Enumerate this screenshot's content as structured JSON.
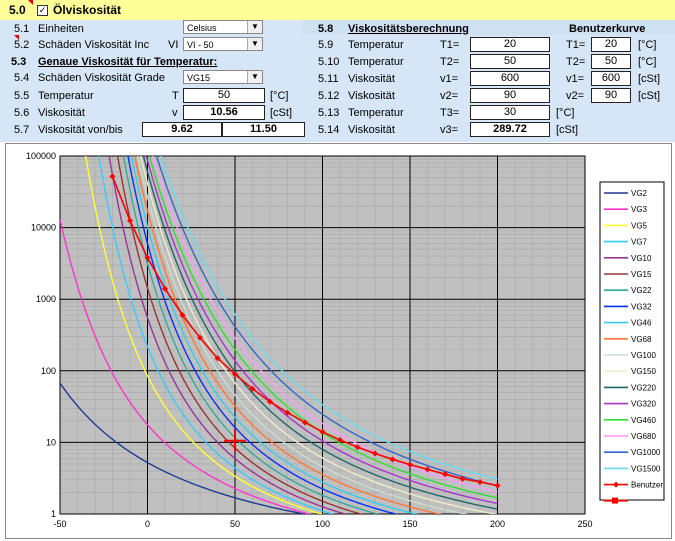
{
  "header": {
    "section": "5.0",
    "title": "Ölviskosität",
    "checked": true
  },
  "form_left": {
    "r51": {
      "num": "5.1",
      "label": "Einheiten",
      "select": "Celsius"
    },
    "r52": {
      "num": "5.2",
      "label": "Schäden Viskosität Inc",
      "sym": "VI",
      "select": "VI - 50"
    },
    "r53": {
      "num": "5.3",
      "label": "Genaue Viskosität für Temperatur:"
    },
    "r54": {
      "num": "5.4",
      "label": "Schäden Viskosität Grade",
      "select": "VG15"
    },
    "r55": {
      "num": "5.5",
      "label": "Temperatur",
      "sym": "T",
      "value": "50",
      "unit": "[°C]"
    },
    "r56": {
      "num": "5.6",
      "label": "Viskosität",
      "sym": "v",
      "value": "10.56",
      "unit": "[cSt]"
    },
    "r57": {
      "num": "5.7",
      "label": "Viskosität von/bis",
      "v1": "9.62",
      "v2": "11.50"
    }
  },
  "form_right": {
    "r58": {
      "num": "5.8",
      "label": "Viskositätsberechnung",
      "user": "Benutzerkurve"
    },
    "rows": [
      {
        "num": "5.9",
        "label": "Temperatur",
        "sym": "T1=",
        "value": "20",
        "sym2": "T1=",
        "value2": "20",
        "unit": "[°C]"
      },
      {
        "num": "5.10",
        "label": "Temperatur",
        "sym": "T2=",
        "value": "50",
        "sym2": "T2=",
        "value2": "50",
        "unit": "[°C]"
      },
      {
        "num": "5.11",
        "label": "Viskosität",
        "sym": "v1=",
        "value": "600",
        "sym2": "v1=",
        "value2": "600",
        "unit": "[cSt]"
      },
      {
        "num": "5.12",
        "label": "Viskosität",
        "sym": "v2=",
        "value": "90",
        "sym2": "v2=",
        "value2": "90",
        "unit": "[cSt]"
      },
      {
        "num": "5.13",
        "label": "Temperatur",
        "sym": "T3=",
        "value": "30",
        "unit": "[°C]"
      },
      {
        "num": "5.14",
        "label": "Viskosität",
        "sym": "v3=",
        "value": "289.72",
        "unit": "[cSt]"
      }
    ]
  },
  "chart_data": {
    "type": "line",
    "x_ticks": [
      "-50",
      "0",
      "50",
      "100",
      "150",
      "200",
      "250"
    ],
    "y_ticks": [
      "1",
      "10",
      "100",
      "1000",
      "10000",
      "100000"
    ],
    "xlim": [
      -50,
      250
    ],
    "ylim": [
      1,
      100000
    ],
    "y_scale": "log",
    "grid": true,
    "legend_position": "right",
    "series": [
      {
        "name": "VG2",
        "color": "#1f3a93",
        "v40": 2
      },
      {
        "name": "VG3",
        "color": "#ff33cc",
        "v40": 3
      },
      {
        "name": "VG5",
        "color": "#ffff33",
        "v40": 5
      },
      {
        "name": "VG7",
        "color": "#33ccff",
        "v40": 7
      },
      {
        "name": "VG10",
        "color": "#993399",
        "v40": 10
      },
      {
        "name": "VG15",
        "color": "#993333",
        "v40": 15
      },
      {
        "name": "VG22",
        "color": "#33aa99",
        "v40": 22
      },
      {
        "name": "VG32",
        "color": "#0033ff",
        "v40": 32
      },
      {
        "name": "VG46",
        "color": "#33ccee",
        "v40": 46
      },
      {
        "name": "VG68",
        "color": "#ff7733",
        "v40": 68
      },
      {
        "name": "VG100",
        "color": "#ccddcc",
        "v40": 100
      },
      {
        "name": "VG150",
        "color": "#eeeecc",
        "v40": 150
      },
      {
        "name": "VG220",
        "color": "#226666",
        "v40": 220
      },
      {
        "name": "VG320",
        "color": "#aa33cc",
        "v40": 320
      },
      {
        "name": "VG460",
        "color": "#33dd33",
        "v40": 460
      },
      {
        "name": "VG680",
        "color": "#ff99ff",
        "v40": 680
      },
      {
        "name": "VG1000",
        "color": "#3366cc",
        "v40": 1000
      },
      {
        "name": "VG1500",
        "color": "#66ddee",
        "v40": 1500
      }
    ],
    "user_series": {
      "name": "Benutzer",
      "color": "#ff0000",
      "x": [
        -20,
        -10,
        0,
        10,
        20,
        30,
        40,
        50,
        60,
        70,
        80,
        90,
        100,
        110,
        120,
        130,
        140,
        150,
        160,
        170,
        180,
        190,
        200
      ],
      "y": [
        52000,
        12500,
        3800,
        1400,
        600,
        290,
        150,
        90,
        56,
        37,
        26,
        19,
        14,
        10.8,
        8.6,
        7.0,
        5.8,
        4.9,
        4.2,
        3.6,
        3.1,
        2.8,
        2.5
      ]
    },
    "marker_series": {
      "name": "",
      "color": "#ff0000"
    },
    "crosshair": {
      "x": 50,
      "y": 10.56
    }
  }
}
